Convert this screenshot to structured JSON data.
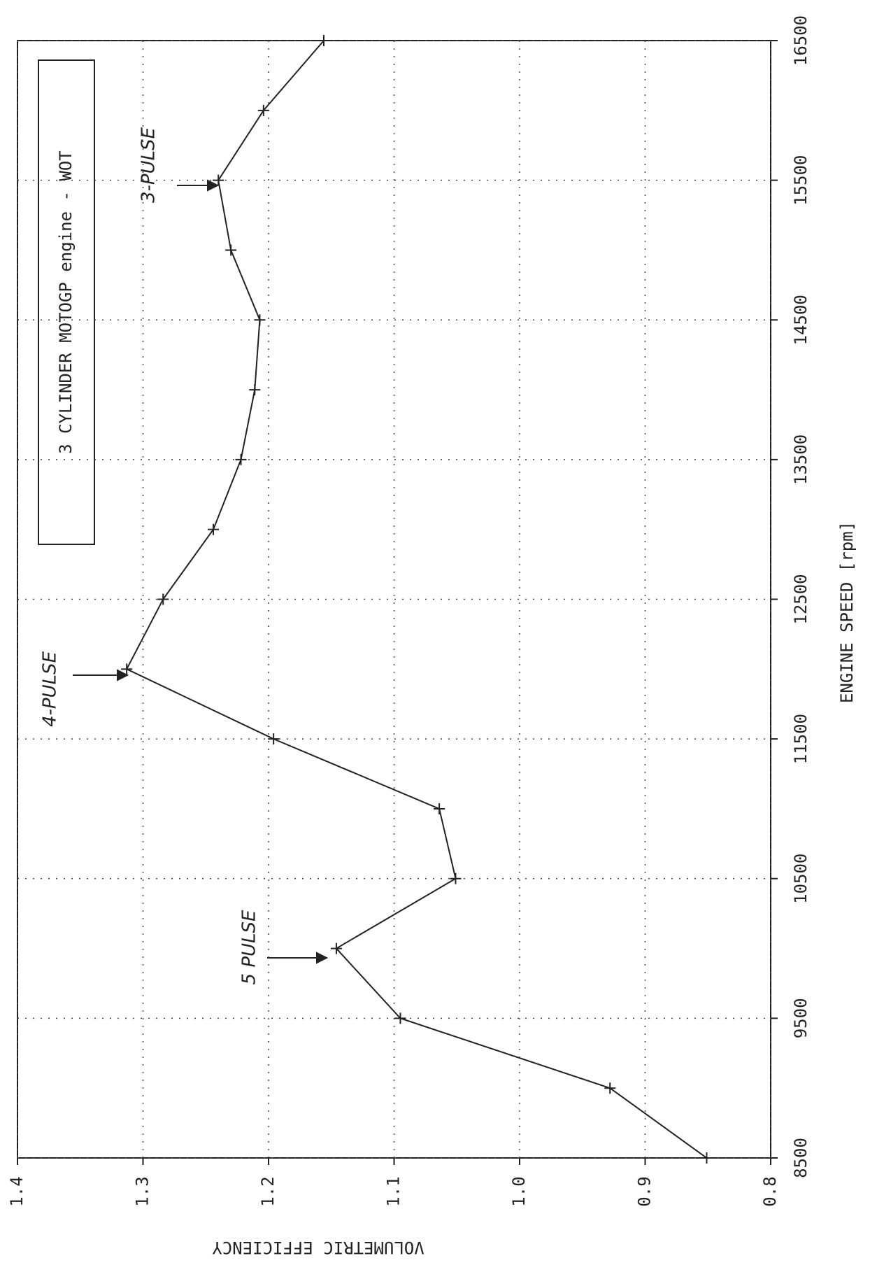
{
  "chart_data": {
    "type": "line",
    "title": "3 CYLINDER MOTOGP engine - WOT",
    "x_label": "ENGINE SPEED [rpm]",
    "y_label": "VOLUMETRIC EFFICIENCY",
    "annotations": [
      "4-PULSE",
      "5 PULSE",
      "3-PULSE"
    ],
    "x": [
      8500,
      9000,
      9500,
      10000,
      10500,
      11000,
      11500,
      12000,
      12500,
      13000,
      13500,
      14000,
      14500,
      15000,
      15500,
      16000,
      16500
    ],
    "series": [
      {
        "name": "VOLUMETRIC EFFICIENCY",
        "color": "#222222",
        "values": [
          0.851,
          0.928,
          1.095,
          1.146,
          1.051,
          1.064,
          1.196,
          1.313,
          1.284,
          1.244,
          1.222,
          1.211,
          1.207,
          1.23,
          1.24,
          1.204,
          1.156
        ]
      }
    ],
    "xlim": [
      8500,
      16500
    ],
    "xticks": [
      8500,
      9500,
      10500,
      11500,
      12500,
      13500,
      14500,
      15500,
      16500
    ],
    "ylim": [
      0.8,
      1.4
    ],
    "yticks": [
      0.8,
      0.9,
      {
        "value": 1,
        "label": "1.0"
      },
      1.1,
      1.2,
      1.3,
      1.4
    ],
    "grid": true
  }
}
